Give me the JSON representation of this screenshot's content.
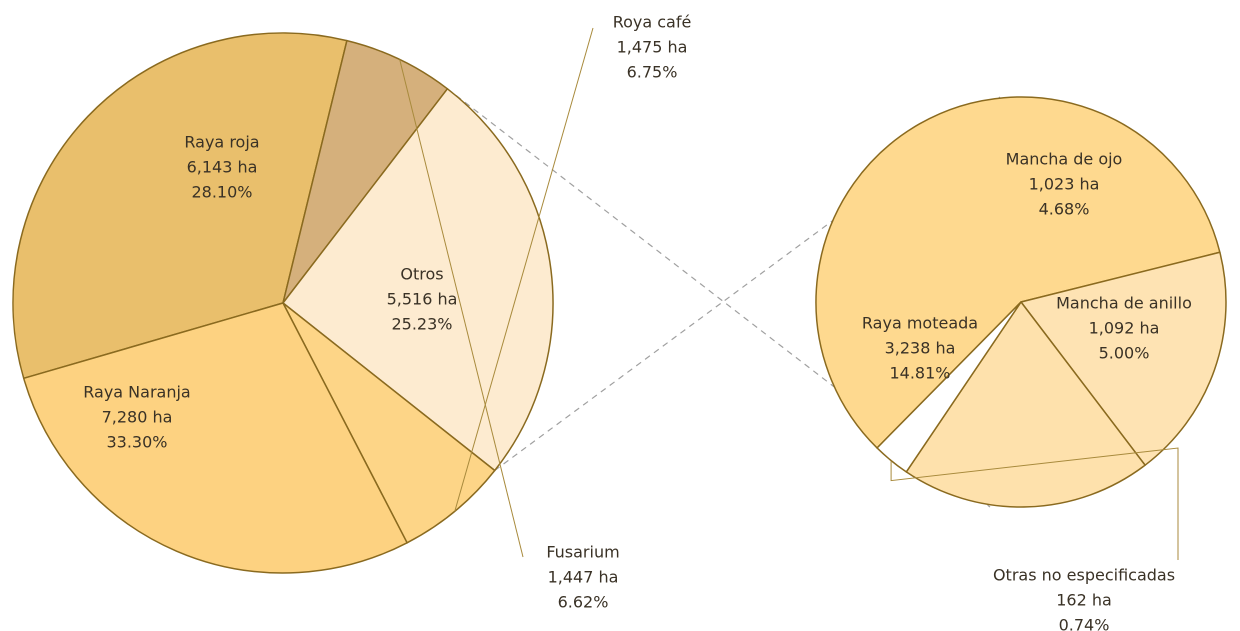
{
  "chart_data": [
    {
      "type": "pie",
      "title": "",
      "slices": [
        {
          "name": "Raya Naranja",
          "value": 7280,
          "value_label": "7,280 ha",
          "percent": 33.3,
          "percent_label": "33.30%",
          "color": "#e9bf6c"
        },
        {
          "name": "Fusarium",
          "value": 1447,
          "value_label": "1,447 ha",
          "percent": 6.62,
          "percent_label": "6.62%",
          "color": "#d5b07c"
        },
        {
          "name": "Otros",
          "value": 5516,
          "value_label": "5,516 ha",
          "percent": 25.23,
          "percent_label": "25.23%",
          "color": "#fdebd0"
        },
        {
          "name": "Roya café",
          "value": 1475,
          "value_label": "1,475 ha",
          "percent": 6.75,
          "percent_label": "6.75%",
          "color": "#fdd587"
        },
        {
          "name": "Raya roja",
          "value": 6143,
          "value_label": "6,143 ha",
          "percent": 28.1,
          "percent_label": "28.10%",
          "color": "#fdd281"
        }
      ]
    },
    {
      "type": "pie",
      "title": "",
      "breakdown_of": "Otros",
      "slices": [
        {
          "name": "Raya moteada",
          "value": 3238,
          "value_label": "3,238 ha",
          "percent": 14.81,
          "percent_label": "14.81%",
          "color": "#fed98f"
        },
        {
          "name": "Mancha de ojo",
          "value": 1023,
          "value_label": "1,023 ha",
          "percent": 4.68,
          "percent_label": "4.68%",
          "color": "#fee3b3"
        },
        {
          "name": "Mancha de anillo",
          "value": 1092,
          "value_label": "1,092 ha",
          "percent": 5.0,
          "percent_label": "5.00%",
          "color": "#fee1ac"
        },
        {
          "name": "Otras no especificadas",
          "value": 162,
          "value_label": "162 ha",
          "percent": 0.74,
          "percent_label": "0.74%",
          "color": "#ffffff"
        }
      ]
    }
  ]
}
